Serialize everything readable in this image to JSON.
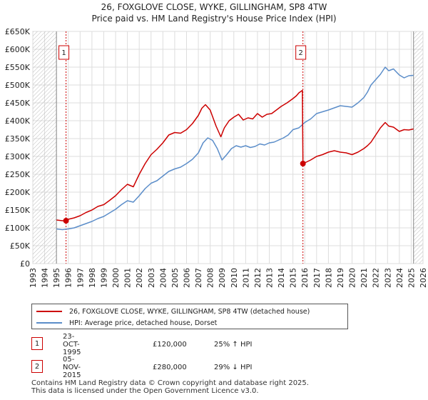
{
  "chart_data": {
    "type": "line",
    "title": "26, FOXGLOVE CLOSE, WYKE, GILLINGHAM, SP8 4TW",
    "subtitle": "Price paid vs. HM Land Registry's House Price Index (HPI)",
    "xlim": [
      1993,
      2026
    ],
    "ylim": [
      0,
      650000
    ],
    "yticks": [
      {
        "value": 0,
        "label": "£0"
      },
      {
        "value": 50000,
        "label": "£50K"
      },
      {
        "value": 100000,
        "label": "£100K"
      },
      {
        "value": 150000,
        "label": "£150K"
      },
      {
        "value": 200000,
        "label": "£200K"
      },
      {
        "value": 250000,
        "label": "£250K"
      },
      {
        "value": 300000,
        "label": "£300K"
      },
      {
        "value": 350000,
        "label": "£350K"
      },
      {
        "value": 400000,
        "label": "£400K"
      },
      {
        "value": 450000,
        "label": "£450K"
      },
      {
        "value": 500000,
        "label": "£500K"
      },
      {
        "value": 550000,
        "label": "£550K"
      },
      {
        "value": 600000,
        "label": "£600K"
      },
      {
        "value": 650000,
        "label": "£650K"
      }
    ],
    "xticks": [
      "1993",
      "1994",
      "1995",
      "1996",
      "1997",
      "1998",
      "1999",
      "2000",
      "2001",
      "2002",
      "2003",
      "2004",
      "2005",
      "2006",
      "2007",
      "2008",
      "2009",
      "2010",
      "2011",
      "2012",
      "2013",
      "2014",
      "2015",
      "2016",
      "2017",
      "2018",
      "2019",
      "2020",
      "2021",
      "2022",
      "2023",
      "2024",
      "2025",
      "2026"
    ],
    "data_range": [
      1995.0,
      2025.2
    ],
    "series": [
      {
        "name": "26, FOXGLOVE CLOSE, WYKE, GILLINGHAM, SP8 4TW (detached house)",
        "color": "#cc0000",
        "x": [
          1995.0,
          1995.5,
          1995.81,
          1996.0,
          1996.5,
          1997.0,
          1997.5,
          1998.0,
          1998.5,
          1999.0,
          1999.5,
          2000.0,
          2000.5,
          2001.0,
          2001.5,
          2002.0,
          2002.5,
          2003.0,
          2003.5,
          2004.0,
          2004.5,
          2005.0,
          2005.5,
          2006.0,
          2006.5,
          2007.0,
          2007.3,
          2007.6,
          2008.0,
          2008.5,
          2008.9,
          2009.2,
          2009.6,
          2010.0,
          2010.4,
          2010.8,
          2011.2,
          2011.6,
          2012.0,
          2012.4,
          2012.8,
          2013.2,
          2013.6,
          2014.0,
          2014.5,
          2015.0,
          2015.3,
          2015.5,
          2015.8,
          2015.845,
          2016.0,
          2016.5,
          2017.0,
          2017.5,
          2018.0,
          2018.5,
          2019.0,
          2019.5,
          2020.0,
          2020.5,
          2021.0,
          2021.3,
          2021.6,
          2022.0,
          2022.4,
          2022.8,
          2023.1,
          2023.5,
          2024.0,
          2024.4,
          2024.8,
          2025.2
        ],
        "y": [
          122000,
          120000,
          120000,
          124000,
          128000,
          134000,
          143000,
          150000,
          160000,
          165000,
          177000,
          190000,
          207000,
          222000,
          215000,
          250000,
          280000,
          305000,
          320000,
          338000,
          360000,
          367000,
          365000,
          375000,
          392000,
          415000,
          435000,
          445000,
          430000,
          385000,
          355000,
          380000,
          400000,
          410000,
          418000,
          402000,
          408000,
          405000,
          420000,
          410000,
          418000,
          420000,
          430000,
          440000,
          450000,
          462000,
          470000,
          478000,
          485000,
          280000,
          282000,
          290000,
          300000,
          305000,
          312000,
          316000,
          312000,
          310000,
          305000,
          312000,
          322000,
          330000,
          340000,
          360000,
          380000,
          395000,
          385000,
          382000,
          370000,
          375000,
          374000,
          377000
        ]
      },
      {
        "name": "HPI: Average price, detached house, Dorset",
        "color": "#5b8dc9",
        "x": [
          1995.0,
          1995.5,
          1996.0,
          1996.5,
          1997.0,
          1997.5,
          1998.0,
          1998.5,
          1999.0,
          1999.5,
          2000.0,
          2000.5,
          2001.0,
          2001.5,
          2002.0,
          2002.5,
          2003.0,
          2003.5,
          2004.0,
          2004.5,
          2005.0,
          2005.5,
          2006.0,
          2006.5,
          2007.0,
          2007.4,
          2007.8,
          2008.2,
          2008.6,
          2009.0,
          2009.4,
          2009.8,
          2010.2,
          2010.6,
          2011.0,
          2011.4,
          2011.8,
          2012.2,
          2012.6,
          2013.0,
          2013.4,
          2013.8,
          2014.2,
          2014.6,
          2015.0,
          2015.5,
          2016.0,
          2016.5,
          2017.0,
          2017.5,
          2018.0,
          2018.5,
          2019.0,
          2019.5,
          2020.0,
          2020.5,
          2021.0,
          2021.3,
          2021.6,
          2022.0,
          2022.4,
          2022.8,
          2023.1,
          2023.5,
          2024.0,
          2024.4,
          2024.8,
          2025.2
        ],
        "y": [
          97000,
          95000,
          97000,
          100000,
          106000,
          112000,
          118000,
          126000,
          132000,
          142000,
          152000,
          165000,
          176000,
          172000,
          190000,
          210000,
          225000,
          232000,
          245000,
          258000,
          265000,
          270000,
          280000,
          292000,
          310000,
          338000,
          352000,
          345000,
          322000,
          290000,
          305000,
          322000,
          330000,
          326000,
          330000,
          325000,
          328000,
          335000,
          332000,
          338000,
          340000,
          346000,
          352000,
          360000,
          375000,
          380000,
          395000,
          405000,
          420000,
          425000,
          430000,
          436000,
          442000,
          440000,
          438000,
          450000,
          465000,
          480000,
          500000,
          515000,
          530000,
          550000,
          540000,
          545000,
          528000,
          520000,
          526000,
          527000
        ]
      }
    ],
    "transactions": [
      {
        "id": "1",
        "date": "23-OCT-1995",
        "price": "£120,000",
        "hpi": "25% ↑ HPI",
        "x": 1995.81,
        "y": 120000
      },
      {
        "id": "2",
        "date": "05-NOV-2015",
        "price": "£280,000",
        "hpi": "29% ↓ HPI",
        "x": 2015.845,
        "y": 280000
      }
    ]
  },
  "legend": {
    "property_label": "26, FOXGLOVE CLOSE, WYKE, GILLINGHAM, SP8 4TW (detached house)",
    "hpi_label": "HPI: Average price, detached house, Dorset"
  },
  "footer": {
    "line1": "Contains HM Land Registry data © Crown copyright and database right 2025.",
    "line2": "This data is licensed under the Open Government Licence v3.0."
  },
  "colors": {
    "property": "#cc0000",
    "hpi": "#5b8dc9",
    "grid": "#dddddd",
    "hatch": "#bbbbbb"
  }
}
